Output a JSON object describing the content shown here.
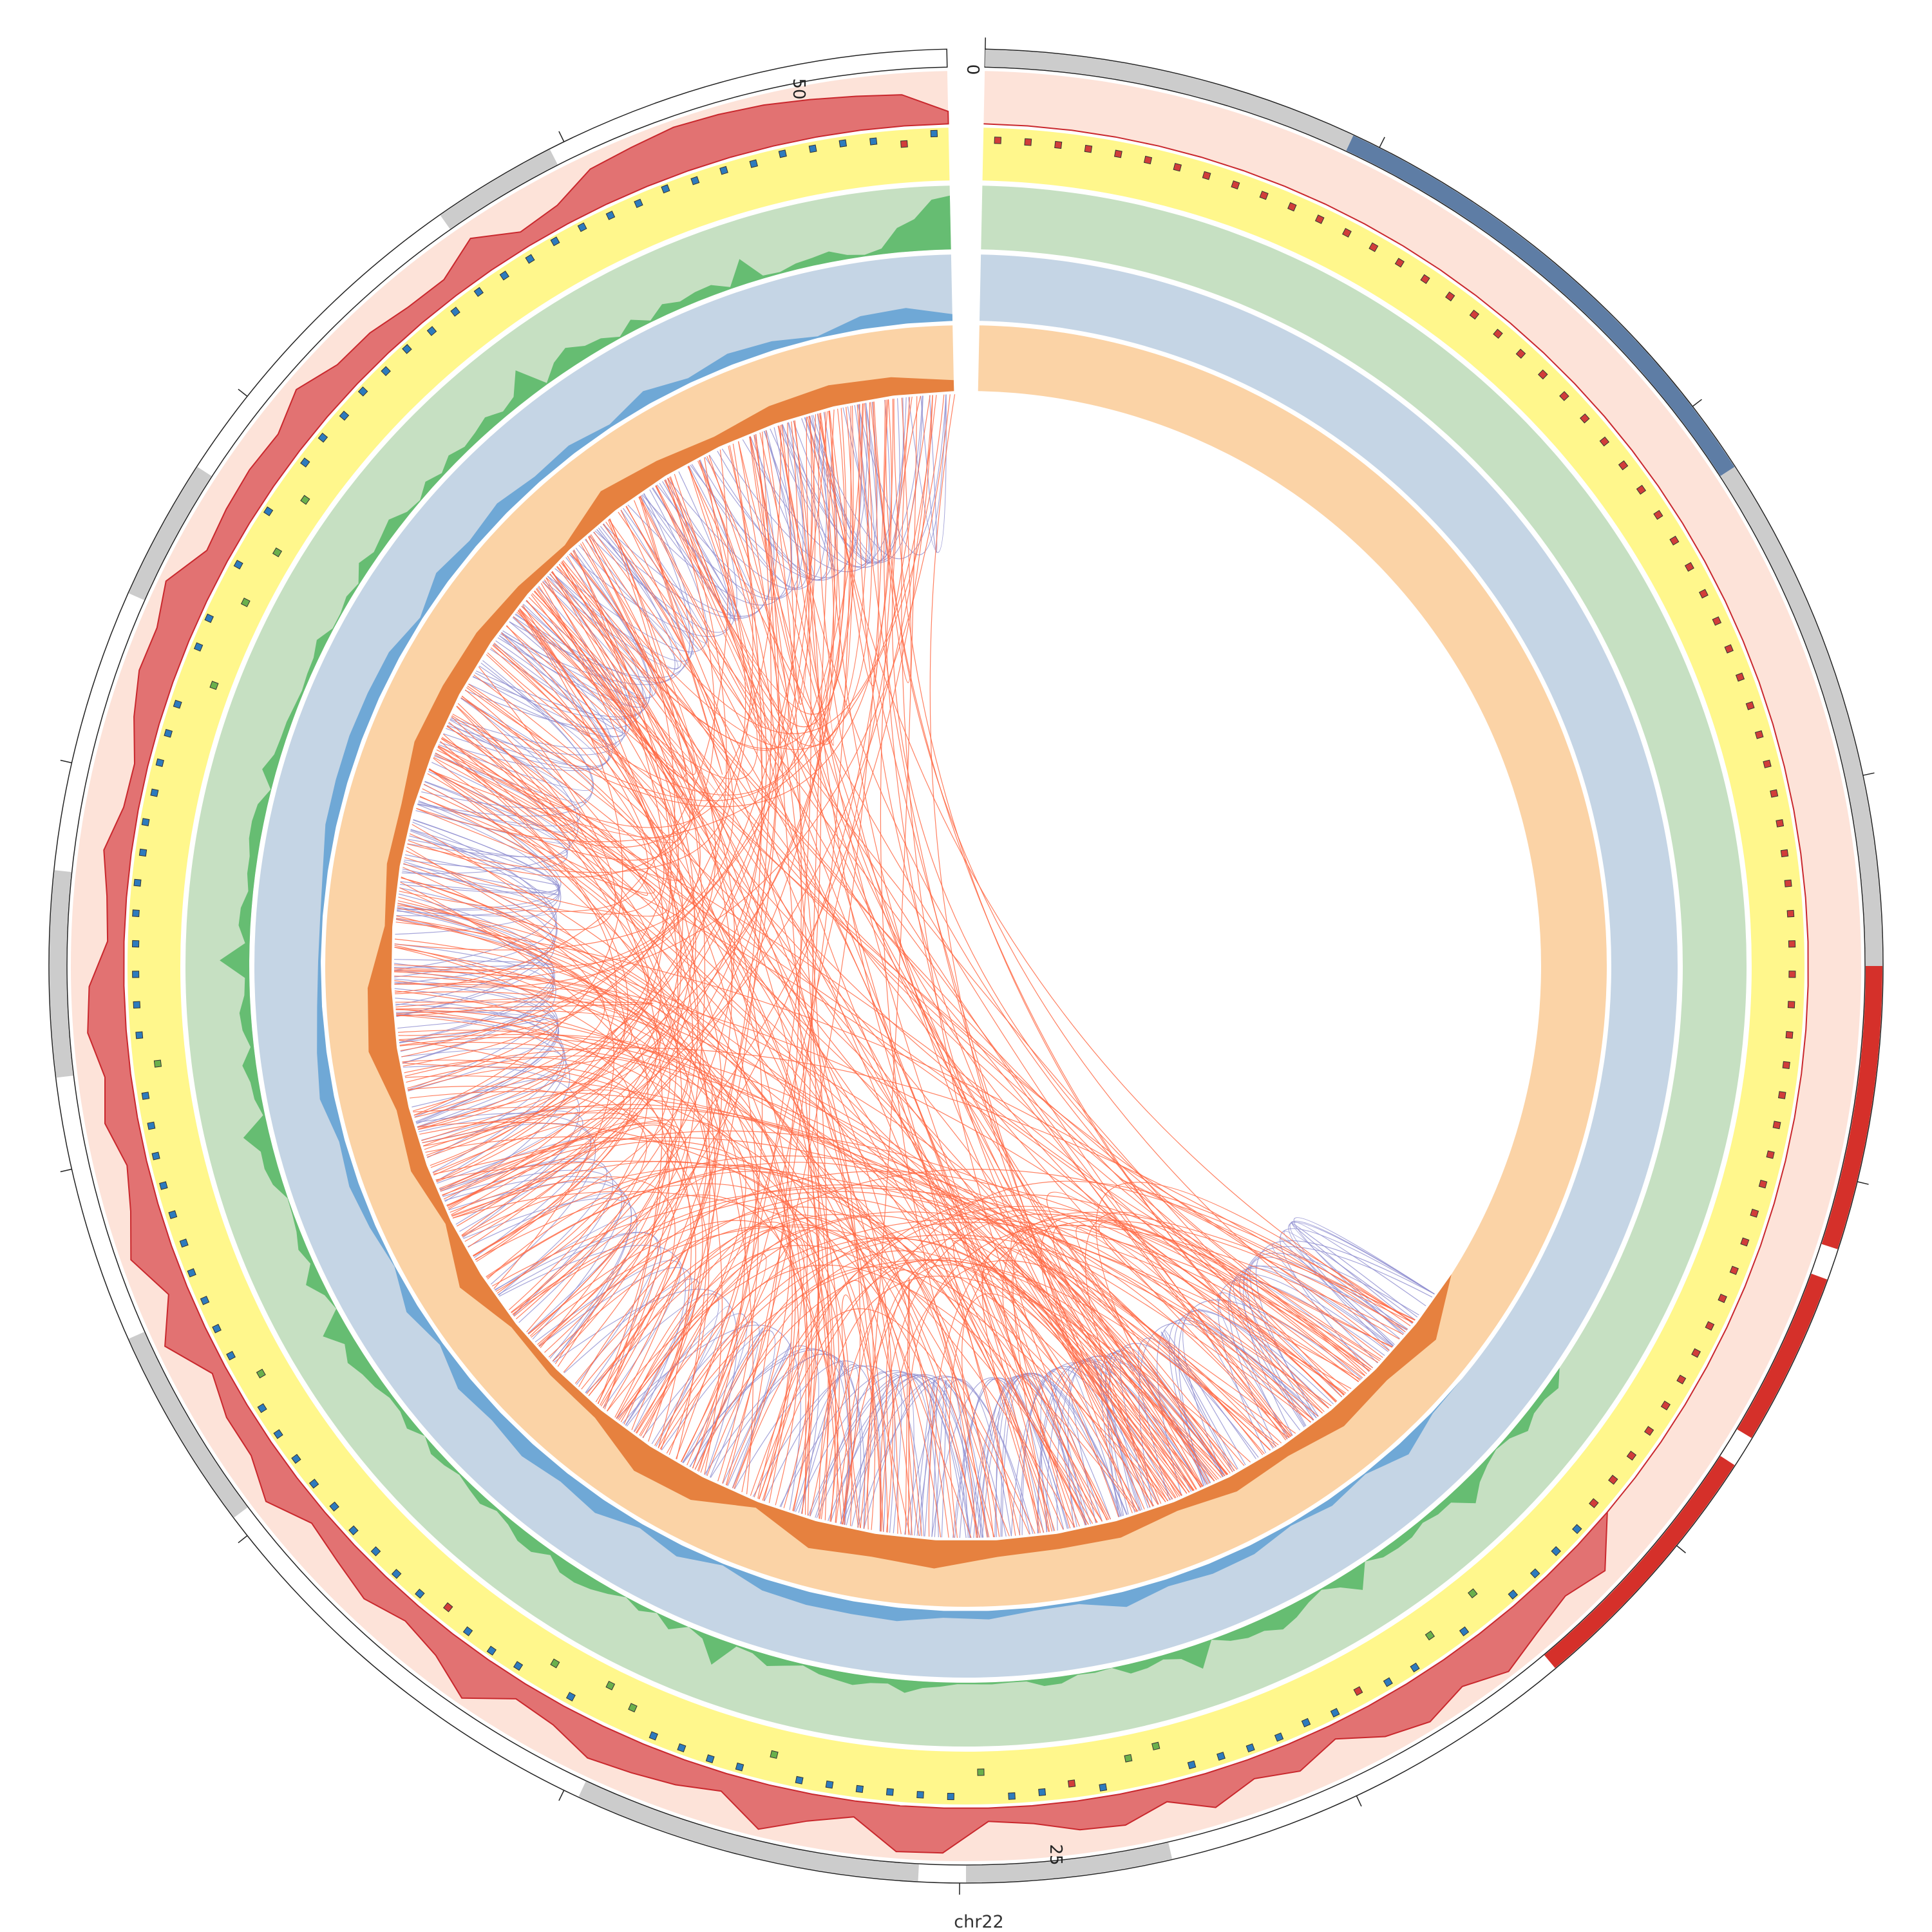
{
  "chromosome": {
    "name": "chr22",
    "tick_labels": [
      "0",
      "25",
      "50"
    ]
  },
  "colors": {
    "band_gray": "#cccccc",
    "band_blue": "#5e7da5",
    "band_red": "#d5302a",
    "track1_bg": "#fde3d9",
    "track1_fill": "#e27272",
    "track1_line": "#c9282d",
    "track2_bg": "#fff78c",
    "scatter_blue": "#2d7bbd",
    "scatter_green": "#6ab04c",
    "scatter_red": "#d13d3a",
    "track3_bg": "#c6e0c2",
    "track3_fill": "#66bd72",
    "track4_bg": "#c5d5e5",
    "track4_fill": "#6fa8d6",
    "track5_bg": "#fbd3a6",
    "track5_fill": "#e6813f",
    "link_red": "#ff6a45",
    "link_purple": "#8e8dd0"
  },
  "icons": {}
}
